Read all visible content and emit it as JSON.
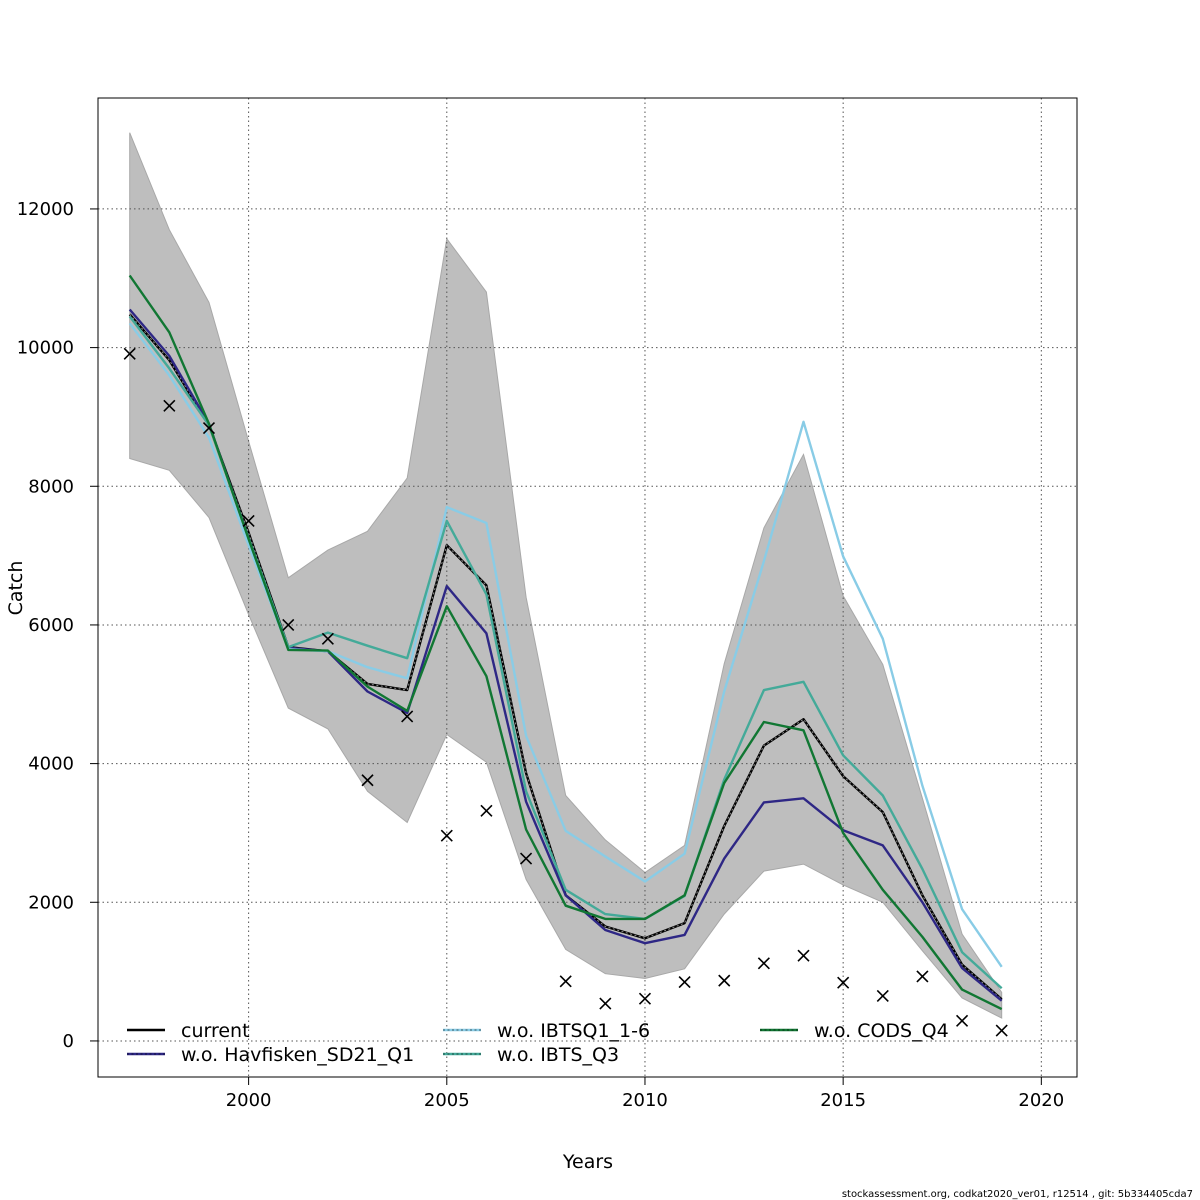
{
  "chart_data": {
    "type": "line",
    "xlabel": "Years",
    "ylabel": "Catch",
    "xlim": [
      1996.2,
      2020.9
    ],
    "ylim": [
      -520,
      13600
    ],
    "xticks": [
      2000,
      2005,
      2010,
      2015,
      2020
    ],
    "yticks": [
      0,
      2000,
      4000,
      6000,
      8000,
      10000,
      12000
    ],
    "grid": true,
    "legend_position": "bottom",
    "x": [
      1997,
      1998,
      1999,
      2000,
      2001,
      2002,
      2003,
      2004,
      2005,
      2006,
      2007,
      2008,
      2009,
      2010,
      2011,
      2012,
      2013,
      2014,
      2015,
      2016,
      2017,
      2018,
      2019
    ],
    "confidence_band": {
      "lower": [
        8400,
        8230,
        7550,
        6150,
        4800,
        4500,
        3600,
        3150,
        4420,
        4020,
        2330,
        1320,
        970,
        900,
        1040,
        1830,
        2450,
        2550,
        2250,
        2000,
        1300,
        620,
        330
      ],
      "upper": [
        13100,
        11700,
        10650,
        8650,
        6680,
        7080,
        7350,
        8120,
        11570,
        10800,
        6400,
        3540,
        2900,
        2430,
        2820,
        5440,
        7400,
        8460,
        6420,
        5430,
        3500,
        1540,
        700
      ],
      "color": "#bebebe"
    },
    "series": [
      {
        "name": "current",
        "color": "#000000",
        "dashed": true,
        "values": [
          10480,
          9820,
          8880,
          7330,
          5680,
          5620,
          5150,
          5060,
          7150,
          6570,
          3860,
          2100,
          1650,
          1480,
          1700,
          3100,
          4260,
          4640,
          3820,
          3300,
          2100,
          1100,
          600
        ]
      },
      {
        "name": "w.o. Havfisken_SD21_Q1",
        "color": "#2e2785",
        "dashed": false,
        "values": [
          10550,
          9880,
          8900,
          7250,
          5670,
          5620,
          5040,
          4730,
          6560,
          5880,
          3450,
          2100,
          1600,
          1410,
          1530,
          2630,
          3440,
          3500,
          3040,
          2820,
          2000,
          1050,
          580
        ]
      },
      {
        "name": "w.o. IBTSQ1_1-6",
        "color": "#89cce6",
        "dashed": false,
        "values": [
          10350,
          9600,
          8700,
          7150,
          5650,
          5620,
          5390,
          5230,
          7700,
          7470,
          4400,
          3030,
          2660,
          2300,
          2700,
          5040,
          6920,
          8930,
          6990,
          5800,
          3680,
          1900,
          1070
        ]
      },
      {
        "name": "w.o. IBTS_Q3",
        "color": "#44aa99",
        "dashed": false,
        "values": [
          10450,
          9700,
          8880,
          7250,
          5680,
          5890,
          5700,
          5520,
          7500,
          6440,
          3600,
          2180,
          1830,
          1760,
          2090,
          3770,
          5060,
          5180,
          4120,
          3540,
          2480,
          1280,
          760
        ]
      },
      {
        "name": "w.o. CODS_Q4",
        "color": "#117733",
        "dashed": false,
        "values": [
          11040,
          10220,
          8900,
          7240,
          5640,
          5630,
          5110,
          4760,
          6270,
          5260,
          3050,
          1950,
          1760,
          1760,
          2100,
          3720,
          4600,
          4480,
          3000,
          2180,
          1500,
          740,
          460
        ]
      }
    ],
    "observed": {
      "marker": "x",
      "values": [
        9910,
        9160,
        8840,
        7500,
        6000,
        5800,
        3760,
        4680,
        2960,
        3320,
        2630,
        860,
        540,
        610,
        850,
        870,
        1120,
        1230,
        840,
        650,
        930,
        290,
        150
      ]
    }
  },
  "legend": {
    "items": [
      {
        "label": "current",
        "color": "#000000",
        "dashed": true
      },
      {
        "label": "w.o. Havfisken_SD21_Q1",
        "color": "#2e2785",
        "dashed": false
      },
      {
        "label": "w.o. IBTSQ1_1-6",
        "color": "#89cce6",
        "dashed": false
      },
      {
        "label": "w.o. IBTS_Q3",
        "color": "#44aa99",
        "dashed": false
      },
      {
        "label": "w.o. CODS_Q4",
        "color": "#117733",
        "dashed": false
      }
    ]
  },
  "footnote": "stockassessment.org, codkat2020_ver01, r12514 , git: 5b334405cda7"
}
